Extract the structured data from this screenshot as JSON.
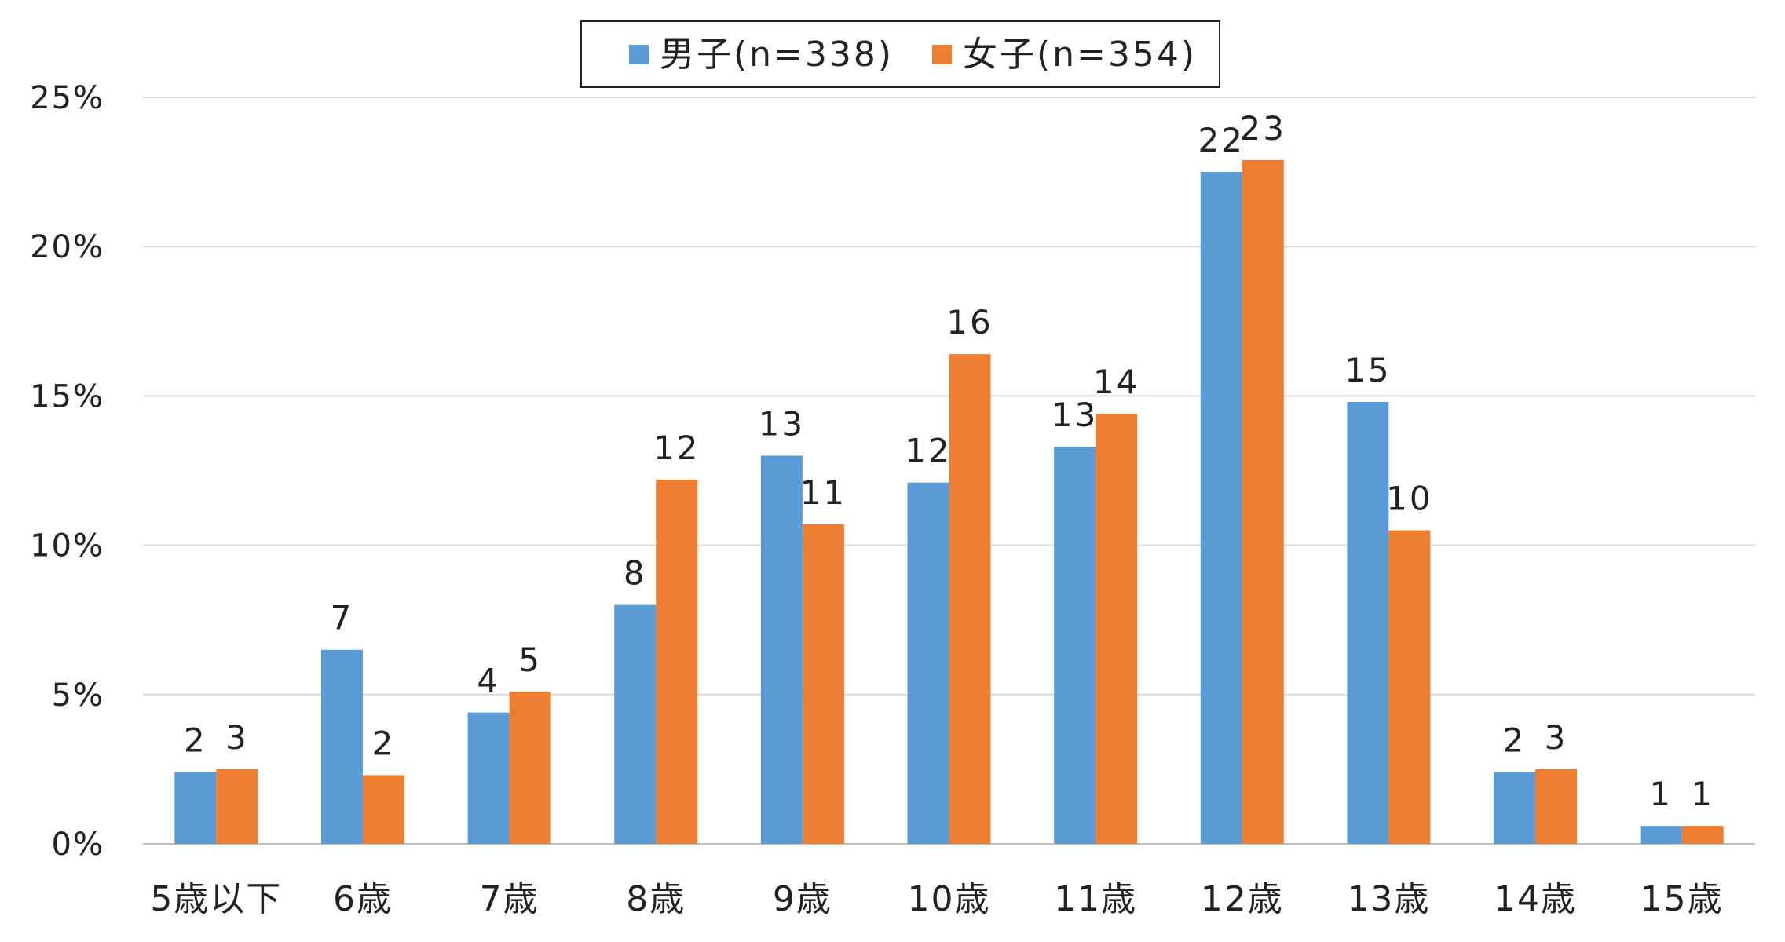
{
  "chart_data": {
    "type": "bar",
    "categories": [
      "5歳以下",
      "6歳",
      "7歳",
      "8歳",
      "9歳",
      "10歳",
      "11歳",
      "12歳",
      "13歳",
      "14歳",
      "15歳"
    ],
    "series": [
      {
        "name": "男子(n=338)",
        "color": "#5b9bd5",
        "values": [
          2.4,
          6.5,
          4.4,
          8.0,
          13.0,
          12.1,
          13.3,
          22.5,
          14.8,
          2.4,
          0.6
        ],
        "labels": [
          "2",
          "7",
          "4",
          "8",
          "13",
          "12",
          "13",
          "22",
          "15",
          "2",
          "1"
        ]
      },
      {
        "name": "女子(n=354)",
        "color": "#ed7d31",
        "values": [
          2.5,
          2.3,
          5.1,
          12.2,
          10.7,
          16.4,
          14.4,
          22.9,
          10.5,
          2.5,
          0.6
        ],
        "labels": [
          "3",
          "2",
          "5",
          "12",
          "11",
          "16",
          "14",
          "23",
          "10",
          "3",
          "1"
        ]
      }
    ],
    "yticks": [
      "0%",
      "5%",
      "10%",
      "15%",
      "20%",
      "25%"
    ],
    "ylim": [
      0,
      25
    ],
    "grid": true,
    "legend_position": "top-center"
  }
}
